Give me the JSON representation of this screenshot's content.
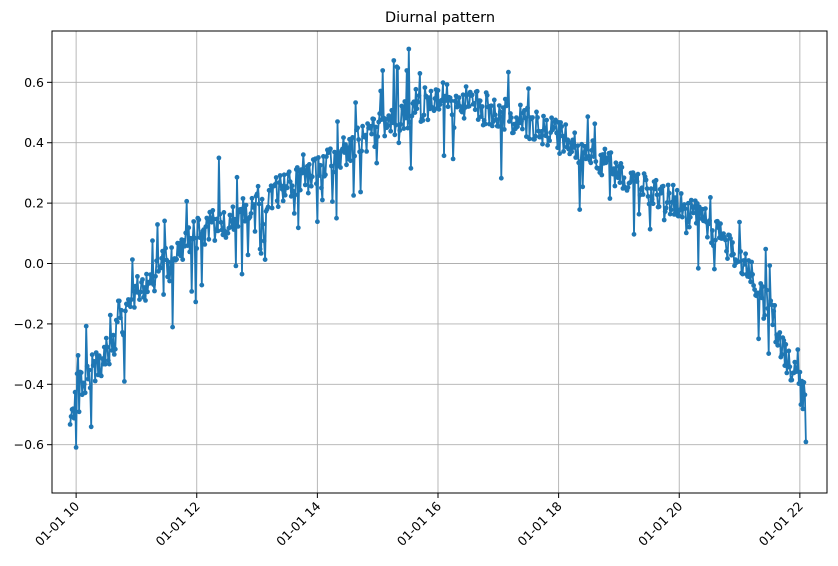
{
  "chart_data": {
    "type": "line",
    "title": "Diurnal pattern",
    "xlabel": "",
    "ylabel": "",
    "x_range_hours": [
      9.6,
      22.45
    ],
    "ylim": [
      -0.76,
      0.77
    ],
    "x_ticks": [
      {
        "hour": 10,
        "label": "01-01 10"
      },
      {
        "hour": 12,
        "label": "01-01 12"
      },
      {
        "hour": 14,
        "label": "01-01 14"
      },
      {
        "hour": 16,
        "label": "01-01 16"
      },
      {
        "hour": 18,
        "label": "01-01 18"
      },
      {
        "hour": 20,
        "label": "01-01 20"
      },
      {
        "hour": 22,
        "label": "01-01 22"
      }
    ],
    "y_ticks": [
      -0.6,
      -0.4,
      -0.2,
      0.0,
      0.2,
      0.4,
      0.6
    ],
    "y_tick_labels": [
      "−0.6",
      "−0.4",
      "−0.2",
      "0.0",
      "0.2",
      "0.4",
      "0.6"
    ],
    "grid": true,
    "legend": "none",
    "series": [
      {
        "color": "#1f77b4",
        "marker": "circle",
        "start_hour": 9.9,
        "end_hour": 22.1,
        "sample_interval_minutes": 1,
        "trend": [
          [
            9.9,
            -0.58
          ],
          [
            10.0,
            -0.42
          ],
          [
            10.5,
            -0.3
          ],
          [
            11.0,
            -0.1
          ],
          [
            11.5,
            0.0
          ],
          [
            12.0,
            0.1
          ],
          [
            12.5,
            0.15
          ],
          [
            13.0,
            0.2
          ],
          [
            13.5,
            0.25
          ],
          [
            14.0,
            0.3
          ],
          [
            14.5,
            0.38
          ],
          [
            15.0,
            0.44
          ],
          [
            15.5,
            0.5
          ],
          [
            16.0,
            0.55
          ],
          [
            16.5,
            0.53
          ],
          [
            17.0,
            0.5
          ],
          [
            17.5,
            0.46
          ],
          [
            18.0,
            0.42
          ],
          [
            18.5,
            0.36
          ],
          [
            19.0,
            0.3
          ],
          [
            19.5,
            0.25
          ],
          [
            20.0,
            0.2
          ],
          [
            20.5,
            0.12
          ],
          [
            21.0,
            0.03
          ],
          [
            21.5,
            -0.15
          ],
          [
            21.8,
            -0.33
          ],
          [
            22.1,
            -0.45
          ]
        ],
        "noise_amplitude": 0.055,
        "spike_range": [
          -0.18,
          0.19
        ]
      }
    ]
  }
}
